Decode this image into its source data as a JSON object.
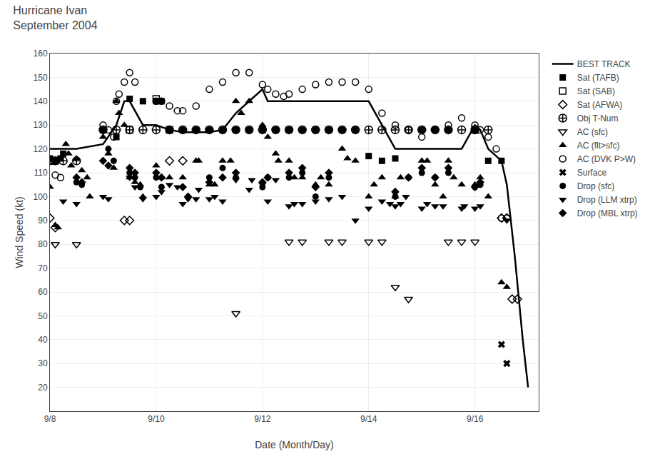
{
  "chart_data": {
    "type": "scatter",
    "title": "Hurricane Ivan\nSeptember 2004",
    "x_label": "Date (Month/Day)",
    "y_label": "Wind Speed (kt)",
    "xlim": [
      8.0,
      17.2
    ],
    "xticks": [
      {
        "value": 8,
        "label": "9/8"
      },
      {
        "value": 10,
        "label": "9/10"
      },
      {
        "value": 12,
        "label": "9/12"
      },
      {
        "value": 14,
        "label": "9/14"
      },
      {
        "value": 16,
        "label": "9/16"
      }
    ],
    "ylim": [
      10,
      160
    ],
    "yticks": [
      20,
      30,
      40,
      50,
      60,
      70,
      80,
      90,
      100,
      110,
      120,
      130,
      140,
      150,
      160
    ],
    "grid": true,
    "legend": "right",
    "series": [
      {
        "name": "BEST TRACK",
        "type": "line",
        "color": "black",
        "line_style": "solid",
        "x": [
          8.0,
          8.5,
          9.0,
          9.25,
          9.4,
          9.5,
          9.75,
          10.0,
          10.25,
          10.5,
          10.75,
          11.0,
          11.25,
          11.5,
          11.75,
          12.0,
          12.1,
          12.25,
          12.5,
          12.75,
          13.0,
          13.25,
          13.5,
          13.75,
          14.0,
          14.25,
          14.5,
          14.75,
          15.0,
          15.25,
          15.5,
          15.75,
          16.0,
          16.1,
          16.25,
          16.5,
          16.6,
          16.75,
          16.9,
          17.0
        ],
        "values": [
          120,
          120,
          122,
          130,
          140,
          140,
          130,
          130,
          128,
          127,
          127,
          127,
          128,
          135,
          140,
          145,
          140,
          140,
          140,
          140,
          140,
          140,
          140,
          140,
          140,
          130,
          120,
          120,
          120,
          120,
          120,
          120,
          130,
          128,
          120,
          115,
          105,
          75,
          40,
          20
        ]
      },
      {
        "name": "Sat (TAFB)",
        "type": "scatter",
        "color": "black",
        "marker": "square",
        "x": [
          8.0,
          8.1,
          8.2,
          8.25,
          9.0,
          9.25,
          9.5,
          9.75,
          10.0,
          10.1,
          10.25,
          10.5,
          10.75,
          11.0,
          11.25,
          11.5,
          11.75,
          12.0,
          12.25,
          12.5,
          12.75,
          13.0,
          13.25,
          13.5,
          13.75,
          14.0,
          14.25,
          14.5,
          15.0,
          15.25,
          15.5,
          16.0,
          16.25,
          16.5
        ],
        "values": [
          116,
          115,
          116,
          118,
          128,
          125,
          141,
          140,
          140,
          140,
          128,
          128,
          128,
          128,
          128,
          128,
          128,
          128,
          128,
          128,
          128,
          128,
          128,
          128,
          128,
          117,
          115,
          116,
          128,
          128,
          128,
          128,
          115,
          115
        ]
      },
      {
        "name": "Sat (SAB)",
        "type": "scatter",
        "color": "black",
        "marker": "square-open",
        "x": [
          8.0,
          8.1,
          9.5,
          10.0,
          10.25,
          16.0
        ],
        "values": [
          115,
          115,
          128,
          141,
          128,
          128
        ]
      },
      {
        "name": "Sat (AFWA)",
        "type": "scatter",
        "color": "black",
        "marker": "diamond-open",
        "x": [
          8.0,
          8.1,
          9.4,
          9.5,
          10.25,
          10.5,
          16.5,
          16.6,
          16.7,
          16.8
        ],
        "values": [
          91,
          87,
          90,
          90,
          115,
          115,
          91,
          91,
          57,
          57
        ]
      },
      {
        "name": "Obj T-Num",
        "type": "scatter",
        "color": "black",
        "marker": "circle-cross-open",
        "x": [
          8.0,
          8.1,
          8.25,
          8.5,
          9.0,
          9.25,
          9.5,
          9.75,
          10.0,
          10.25,
          10.5,
          10.75,
          11.0,
          11.25,
          11.5,
          11.75,
          12.0,
          12.25,
          12.5,
          12.75,
          13.0,
          13.25,
          13.5,
          13.75,
          14.0,
          14.25,
          14.5,
          14.75,
          15.0,
          15.25,
          15.5,
          15.75,
          16.0,
          16.25
        ],
        "values": [
          115,
          115,
          115,
          115,
          128,
          128,
          128,
          128,
          128,
          128,
          128,
          128,
          128,
          128,
          128,
          128,
          128,
          128,
          128,
          128,
          128,
          128,
          128,
          128,
          128,
          128,
          128,
          128,
          128,
          128,
          128,
          128,
          128,
          128
        ]
      },
      {
        "name": "AC (sfc)",
        "type": "scatter",
        "color": "black",
        "marker": "triangle-down-open",
        "x": [
          8.1,
          8.5,
          11.5,
          12.5,
          12.75,
          13.25,
          13.5,
          14.0,
          14.25,
          14.5,
          14.75,
          15.5,
          15.75,
          16.0
        ],
        "values": [
          80,
          80,
          51,
          81,
          81,
          81,
          81,
          81,
          81,
          62,
          57,
          81,
          81,
          81
        ]
      },
      {
        "name": "AC (flt>sfc)",
        "type": "scatter",
        "color": "black",
        "marker": "triangle-up",
        "x": [
          8.0,
          8.1,
          8.15,
          8.3,
          8.35,
          8.4,
          8.5,
          8.6,
          8.7,
          8.75,
          9.0,
          9.1,
          9.2,
          9.25,
          9.3,
          9.4,
          9.5,
          9.6,
          9.7,
          9.75,
          10.0,
          10.1,
          10.25,
          10.5,
          10.75,
          10.8,
          11.0,
          11.1,
          11.25,
          11.4,
          11.5,
          11.6,
          11.75,
          12.0,
          12.1,
          12.25,
          12.3,
          12.5,
          12.6,
          12.75,
          13.0,
          13.1,
          13.25,
          13.5,
          13.6,
          13.75,
          14.0,
          14.1,
          14.25,
          14.5,
          14.6,
          15.0,
          15.1,
          15.25,
          15.4,
          15.5,
          15.6,
          15.75,
          16.0,
          16.1,
          16.25,
          16.5,
          16.6
        ],
        "values": [
          104,
          88,
          87,
          122,
          118,
          113,
          116,
          111,
          108,
          100,
          125,
          118,
          112,
          140,
          135,
          130,
          108,
          106,
          105,
          100,
          113,
          108,
          108,
          108,
          115,
          115,
          105,
          105,
          115,
          115,
          140,
          135,
          140,
          130,
          125,
          118,
          115,
          115,
          108,
          108,
          105,
          108,
          105,
          120,
          116,
          115,
          100,
          105,
          108,
          100,
          108,
          115,
          115,
          105,
          100,
          115,
          108,
          105,
          105,
          108,
          100,
          64,
          62
        ]
      },
      {
        "name": "AC (DVK P>W)",
        "type": "scatter",
        "color": "black",
        "marker": "circle-open",
        "x": [
          8.1,
          8.2,
          9.0,
          9.1,
          9.2,
          9.25,
          9.3,
          9.4,
          9.5,
          9.6,
          10.0,
          10.1,
          10.25,
          10.4,
          10.5,
          10.75,
          11.0,
          11.25,
          11.5,
          11.75,
          12.0,
          12.1,
          12.25,
          12.4,
          12.5,
          12.75,
          13.0,
          13.25,
          13.5,
          13.75,
          14.0,
          14.25,
          14.5,
          14.75,
          15.0,
          15.25,
          15.5,
          15.75,
          16.0,
          16.1,
          16.25,
          16.4,
          16.5,
          16.6
        ],
        "values": [
          109,
          108,
          130,
          128,
          125,
          140,
          143,
          148,
          152,
          148,
          140,
          140,
          138,
          136,
          136,
          138,
          145,
          148,
          152,
          152,
          147,
          145,
          143,
          142,
          143,
          145,
          147,
          148,
          148,
          148,
          145,
          135,
          130,
          128,
          125,
          128,
          130,
          133,
          130,
          128,
          125,
          120,
          91,
          91
        ]
      },
      {
        "name": "Surface",
        "type": "scatter",
        "color": "black",
        "marker": "x",
        "x": [
          16.5,
          16.6
        ],
        "values": [
          38,
          30
        ]
      },
      {
        "name": "Drop (sfc)",
        "type": "scatter",
        "color": "black",
        "marker": "circle",
        "x": [
          8.5,
          8.6,
          9.0,
          9.1,
          9.2,
          9.5,
          9.6,
          9.7,
          10.0,
          10.1,
          11.0,
          11.25,
          11.5,
          12.0,
          12.1,
          12.5,
          12.75,
          13.0,
          13.25,
          14.5,
          14.75,
          15.0,
          15.25,
          15.5,
          16.0,
          16.1
        ],
        "values": [
          106,
          105,
          128,
          120,
          115,
          110,
          108,
          104,
          108,
          104,
          108,
          112,
          108,
          104,
          108,
          108,
          110,
          100,
          108,
          100,
          108,
          110,
          108,
          110,
          104,
          105
        ]
      },
      {
        "name": "Drop (LLM xtrp)",
        "type": "scatter",
        "color": "black",
        "marker": "triangle-down",
        "x": [
          8.25,
          8.5,
          9.0,
          9.1,
          9.5,
          9.6,
          9.75,
          10.0,
          10.1,
          10.25,
          10.4,
          10.5,
          10.6,
          10.75,
          10.8,
          11.0,
          11.1,
          11.25,
          11.5,
          11.75,
          11.8,
          12.0,
          12.1,
          12.25,
          12.5,
          12.6,
          12.75,
          13.0,
          13.25,
          13.5,
          13.75,
          14.0,
          14.25,
          14.4,
          14.5,
          14.6,
          14.7,
          15.0,
          15.1,
          15.25,
          15.4,
          15.75,
          15.8,
          16.0,
          16.1,
          16.6
        ],
        "values": [
          98,
          97,
          100,
          99,
          108,
          104,
          99,
          100,
          102,
          105,
          104,
          97,
          99,
          99,
          103,
          99,
          100,
          98,
          107,
          103,
          107,
          105,
          98,
          107,
          96,
          97,
          97,
          98,
          99,
          100,
          90,
          95,
          98,
          97,
          96,
          97,
          100,
          95,
          97,
          96,
          96,
          95,
          96,
          95,
          96,
          90
        ]
      },
      {
        "name": "Drop (MBL xtrp)",
        "type": "scatter",
        "color": "black",
        "marker": "diamond",
        "x": [
          8.5,
          8.6,
          9.0,
          9.1,
          9.5,
          9.6,
          10.0,
          10.1,
          10.5,
          10.6,
          11.0,
          11.25,
          11.5,
          12.0,
          12.1,
          12.5,
          12.75,
          13.0,
          13.25,
          14.5,
          14.75,
          15.0,
          15.25,
          15.5,
          16.0,
          16.1
        ],
        "values": [
          108,
          106,
          115,
          113,
          112,
          110,
          110,
          108,
          104,
          100,
          106,
          108,
          110,
          106,
          108,
          110,
          112,
          104,
          110,
          102,
          108,
          112,
          108,
          112,
          104,
          106
        ]
      }
    ]
  }
}
